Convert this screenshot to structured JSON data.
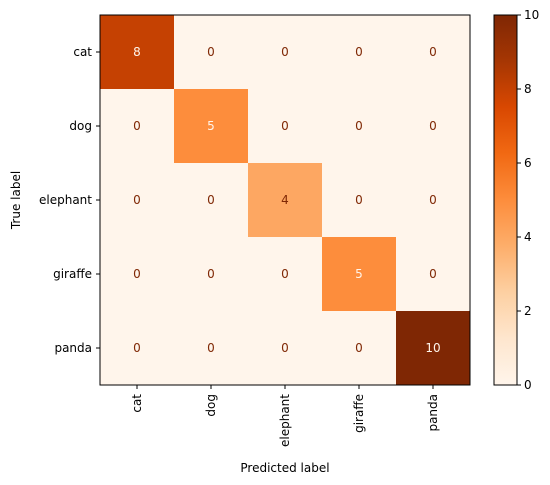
{
  "chart_data": {
    "type": "heatmap",
    "title": "",
    "xlabel": "Predicted label",
    "ylabel": "True label",
    "x_categories": [
      "cat",
      "dog",
      "elephant",
      "giraffe",
      "panda"
    ],
    "y_categories": [
      "cat",
      "dog",
      "elephant",
      "giraffe",
      "panda"
    ],
    "values": [
      [
        8,
        0,
        0,
        0,
        0
      ],
      [
        0,
        5,
        0,
        0,
        0
      ],
      [
        0,
        0,
        4,
        0,
        0
      ],
      [
        0,
        0,
        0,
        5,
        0
      ],
      [
        0,
        0,
        0,
        0,
        10
      ]
    ],
    "colormap": "Oranges",
    "colormap_stops": [
      "#fff5eb",
      "#fee6ce",
      "#fdd0a2",
      "#fdae6b",
      "#fd8d3c",
      "#f16913",
      "#d94801",
      "#a63603",
      "#7f2704"
    ],
    "vmin": 0,
    "vmax": 10,
    "colorbar_ticks": [
      0,
      2,
      4,
      6,
      8,
      10
    ],
    "text_color_dark": "#7f2704",
    "text_color_light": "#fff5eb"
  }
}
